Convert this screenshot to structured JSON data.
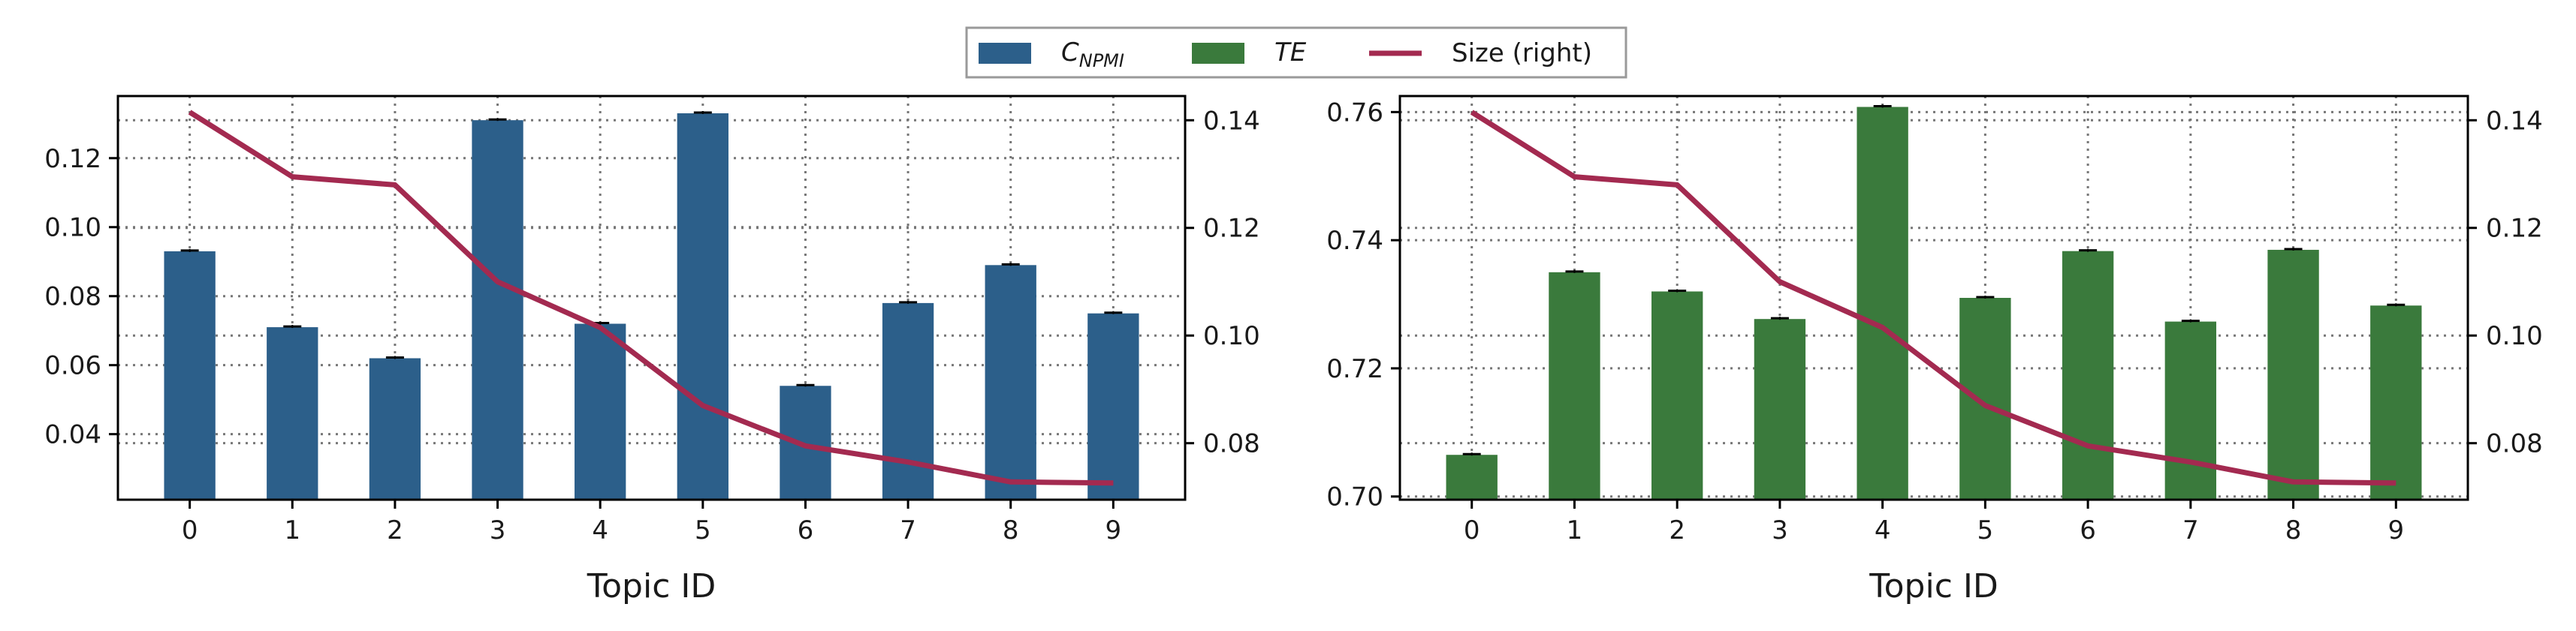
{
  "legend": {
    "items": [
      {
        "label": "C",
        "sub": "NPMI",
        "italic": true,
        "kind": "bar",
        "color": "#2c5f8a"
      },
      {
        "label": "TE",
        "sub": "",
        "italic": true,
        "kind": "bar",
        "color": "#3a7a3c"
      },
      {
        "label": "Size (right)",
        "sub": "",
        "italic": false,
        "kind": "line",
        "color": "#a32a50"
      }
    ]
  },
  "colors": {
    "npmi": "#2c5f8a",
    "te": "#3a7a3c",
    "size": "#a32a50",
    "grid": "#777777"
  },
  "chart_data": [
    {
      "type": "bar",
      "categories": [
        "0",
        "1",
        "2",
        "3",
        "4",
        "5",
        "6",
        "7",
        "8",
        "9"
      ],
      "xlabel": "Topic ID",
      "ylim": [
        0.021,
        0.138
      ],
      "yticks": [
        0.04,
        0.06,
        0.08,
        0.1,
        0.12
      ],
      "ytick_labels": [
        "0.04",
        "0.06",
        "0.08",
        "0.10",
        "0.12"
      ],
      "series": [
        {
          "name": "C_NPMI",
          "values": [
            0.093,
            0.071,
            0.062,
            0.131,
            0.072,
            0.133,
            0.054,
            0.078,
            0.089,
            0.075
          ]
        }
      ],
      "secondary_axis": {
        "ylim": [
          0.0695,
          0.1445
        ],
        "yticks": [
          0.08,
          0.1,
          0.12,
          0.14
        ],
        "ytick_labels": [
          "0.08",
          "0.10",
          "0.12",
          "0.14"
        ],
        "series": [
          {
            "name": "Size (right)",
            "type": "line",
            "values": [
              0.1415,
              0.1295,
              0.128,
              0.11,
              0.1015,
              0.087,
              0.0795,
              0.0765,
              0.0728,
              0.0726
            ]
          }
        ]
      },
      "grid": true
    },
    {
      "type": "bar",
      "categories": [
        "0",
        "1",
        "2",
        "3",
        "4",
        "5",
        "6",
        "7",
        "8",
        "9"
      ],
      "xlabel": "Topic ID",
      "ylim": [
        0.6995,
        0.7625
      ],
      "yticks": [
        0.7,
        0.72,
        0.74,
        0.76
      ],
      "ytick_labels": [
        "0.70",
        "0.72",
        "0.74",
        "0.76"
      ],
      "series": [
        {
          "name": "TE",
          "values": [
            0.7065,
            0.735,
            0.732,
            0.7277,
            0.7608,
            0.731,
            0.7383,
            0.7273,
            0.7385,
            0.7298
          ]
        }
      ],
      "secondary_axis": {
        "ylim": [
          0.0695,
          0.1445
        ],
        "yticks": [
          0.08,
          0.1,
          0.12,
          0.14
        ],
        "ytick_labels": [
          "0.08",
          "0.10",
          "0.12",
          "0.14"
        ],
        "series": [
          {
            "name": "Size (right)",
            "type": "line",
            "values": [
              0.1415,
              0.1295,
              0.128,
              0.11,
              0.1015,
              0.087,
              0.0795,
              0.0765,
              0.0728,
              0.0726
            ]
          }
        ]
      },
      "grid": true
    }
  ]
}
